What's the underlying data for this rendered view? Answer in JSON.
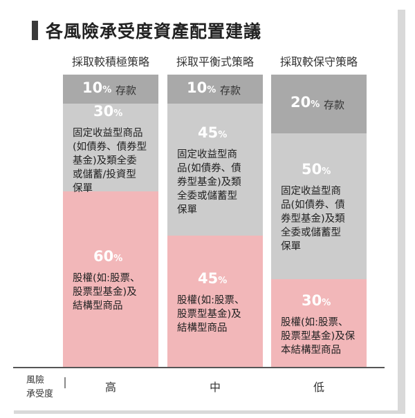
{
  "title": "各風險承受度資產配置建議",
  "chart_data": {
    "type": "bar",
    "stacked": true,
    "title": "各風險承受度資產配置建議",
    "categories": [
      "採取較積極策略",
      "採取平衡式策略",
      "採取較保守策略"
    ],
    "series": [
      {
        "name": "存款",
        "values": [
          10,
          10,
          20
        ],
        "color": "#a9a9a9"
      },
      {
        "name": "固定收益型商品",
        "values": [
          30,
          45,
          50
        ],
        "color": "#cccccc"
      },
      {
        "name": "股權",
        "values": [
          60,
          45,
          30
        ],
        "color": "#f2b7b9"
      }
    ],
    "columns": [
      {
        "label": "採取較積極策略",
        "deposit": {
          "pct": "10",
          "label": "存款"
        },
        "fixed": {
          "pct": "30",
          "lines": [
            "固定收益型商品",
            "(如債券、債券型",
            "基金)及類全委",
            "或儲蓄/投資型",
            "保單"
          ]
        },
        "equity": {
          "pct": "60",
          "lines": [
            "股權(如:股票、",
            "股票型基金)及",
            "結構型商品"
          ]
        },
        "risk": "高"
      },
      {
        "label": "採取平衡式策略",
        "deposit": {
          "pct": "10",
          "label": "存款"
        },
        "fixed": {
          "pct": "45",
          "lines": [
            "固定收益型商",
            "品(如債券、債",
            "券型基金)及類",
            "全委或儲蓄型",
            "保單"
          ]
        },
        "equity": {
          "pct": "45",
          "lines": [
            "股權(如:股票、",
            "股票型基金)及",
            "結構型商品"
          ]
        },
        "risk": "中"
      },
      {
        "label": "採取較保守策略",
        "deposit": {
          "pct": "20",
          "label": "存款"
        },
        "fixed": {
          "pct": "50",
          "lines": [
            "固定收益型商",
            "品(如債券、債",
            "券型基金)及類",
            "全委或儲蓄型",
            "保單"
          ]
        },
        "equity": {
          "pct": "30",
          "lines": [
            "股權(如:股票、",
            "股票型基金)及保",
            "本結構型商品"
          ]
        },
        "risk": "低"
      }
    ],
    "percent_symbol": "%",
    "risk_axis_label": [
      "風險",
      "承受度"
    ]
  }
}
